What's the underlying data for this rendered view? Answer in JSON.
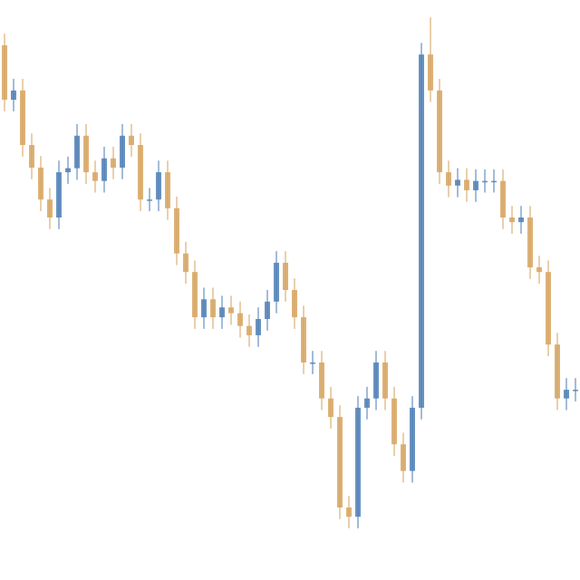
{
  "chart_data": {
    "type": "candlestick",
    "up_color": "#4f7fb5",
    "down_color": "#d6a460",
    "ylim": [
      0,
      100
    ],
    "open": [
      92.2,
      82.8,
      84.4,
      75,
      71.1,
      65.6,
      62.5,
      70.3,
      71,
      76.6,
      70.3,
      68.8,
      72.7,
      71.1,
      76.6,
      75,
      65.6,
      65.6,
      70.3,
      64.1,
      56.3,
      53.1,
      45.3,
      48.4,
      45.3,
      47,
      46,
      43.8,
      42.2,
      45,
      48,
      54.7,
      50,
      45.3,
      37.5,
      37.5,
      31.3,
      28.1,
      12.5,
      10.9,
      29.7,
      31.3,
      37.5,
      31.3,
      23.4,
      18.8,
      29.7,
      90.6,
      84.4,
      70.3,
      68,
      69,
      67.2,
      68.8,
      68.8,
      68.8,
      62.5,
      61.7,
      62.5,
      53.9,
      53.1,
      40.6,
      31.3,
      32.8
    ],
    "close": [
      82.8,
      84.4,
      75,
      71.1,
      65.6,
      62.5,
      70.3,
      71,
      76.6,
      70.3,
      68.8,
      72.7,
      71.1,
      76.6,
      75,
      65.6,
      65.6,
      70.3,
      64.1,
      56.3,
      53.1,
      45.3,
      48.4,
      45.3,
      47,
      46,
      43.8,
      42.2,
      45,
      48,
      54.7,
      50,
      45.3,
      37.5,
      37.5,
      31.3,
      28.1,
      12.5,
      10.9,
      29.7,
      31.3,
      37.5,
      31.3,
      23.4,
      18.8,
      29.7,
      90.6,
      84.4,
      70.3,
      68,
      69,
      67.2,
      68.8,
      68.8,
      68.8,
      62.5,
      61.7,
      62.5,
      53.9,
      53.1,
      40.6,
      31.3,
      32.8,
      32.8
    ],
    "high": [
      94.2,
      86.4,
      86.4,
      77,
      73.1,
      67.6,
      72.3,
      73,
      78.6,
      78.6,
      72.3,
      74.7,
      74.7,
      78.6,
      78.6,
      77,
      67.6,
      72.3,
      72.3,
      66.1,
      58.3,
      55.1,
      50.4,
      50.4,
      49,
      49,
      48,
      45.8,
      47,
      50,
      56.7,
      56.7,
      52,
      47.3,
      39.5,
      39.5,
      33.3,
      30.1,
      14.5,
      31.7,
      33.3,
      39.5,
      39.5,
      33.3,
      25.4,
      31.7,
      92.6,
      97,
      86.4,
      72.3,
      71,
      71,
      70.8,
      70.8,
      70.8,
      70.8,
      64.5,
      64.5,
      64.5,
      55.9,
      55.1,
      42.6,
      34.8,
      34.8
    ],
    "low": [
      80.8,
      80.8,
      73,
      69.1,
      63.6,
      60.5,
      60.5,
      68.3,
      69,
      68.3,
      66.8,
      66.8,
      69.1,
      69.1,
      73,
      63.6,
      63.6,
      63.6,
      62.1,
      54.3,
      51.1,
      43.3,
      43.3,
      43.3,
      43.3,
      44,
      41.8,
      40.2,
      40.2,
      43,
      46,
      48,
      43.3,
      35.5,
      35.5,
      29.3,
      26.1,
      10.5,
      8.9,
      8.9,
      27.7,
      29.3,
      29.3,
      21.4,
      16.8,
      16.8,
      27.7,
      82.4,
      68.3,
      66,
      66,
      65.2,
      65.2,
      66.8,
      66.8,
      60.5,
      59.7,
      59.7,
      51.9,
      51.1,
      38.6,
      29.3,
      29.3,
      30.8
    ]
  }
}
